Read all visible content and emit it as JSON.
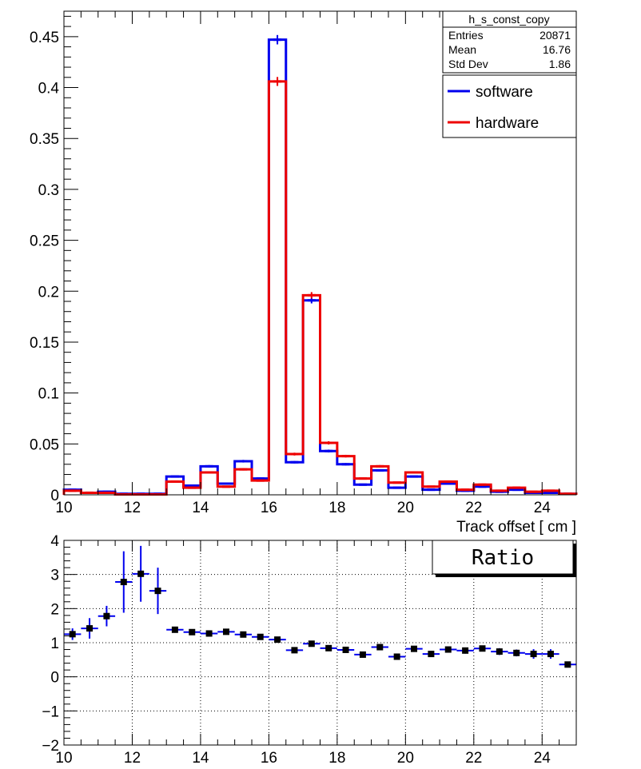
{
  "chart_data": [
    {
      "type": "histogram",
      "xlabel": "Track offset [ cm ]",
      "ylabel": "",
      "xlim": [
        10,
        25
      ],
      "ylim": [
        0,
        0.475
      ],
      "bin_width": 0.5,
      "x_ticks": [
        10,
        12,
        14,
        16,
        18,
        20,
        22,
        24
      ],
      "y_ticks": [
        0,
        0.05,
        0.1,
        0.15,
        0.2,
        0.25,
        0.3,
        0.35,
        0.4,
        0.45
      ],
      "y_tick_labels": [
        "0",
        "0.05",
        "0.1",
        "0.15",
        "0.2",
        "0.25",
        "0.3",
        "0.35",
        "0.4",
        "0.45"
      ],
      "stats_box": {
        "title": "h_s_const_copy",
        "rows": [
          {
            "label": "Entries",
            "value": "20871"
          },
          {
            "label": "Mean",
            "value": "16.76"
          },
          {
            "label": "Std Dev",
            "value": "1.86"
          }
        ]
      },
      "legend_position": "top-right",
      "series": [
        {
          "name": "software",
          "color": "#0000ee",
          "bin_edges_start": 10,
          "values": [
            0.005,
            0.002,
            0.003,
            0.001,
            0.001,
            0.001,
            0.018,
            0.009,
            0.028,
            0.011,
            0.033,
            0.016,
            0.447,
            0.032,
            0.191,
            0.043,
            0.03,
            0.01,
            0.024,
            0.007,
            0.018,
            0.005,
            0.011,
            0.004,
            0.008,
            0.003,
            0.005,
            0.002,
            0.002,
            0.001
          ],
          "errors": [
            0.0006,
            0.0004,
            0.0004,
            0.0003,
            0.0003,
            0.0003,
            0.0009,
            0.0007,
            0.0012,
            0.0007,
            0.0013,
            0.0009,
            0.0046,
            0.0012,
            0.003,
            0.0014,
            0.0012,
            0.0007,
            0.0011,
            0.0006,
            0.0009,
            0.0005,
            0.0007,
            0.0004,
            0.0006,
            0.0004,
            0.0005,
            0.0003,
            0.0003,
            0.0002
          ]
        },
        {
          "name": "hardware",
          "color": "#ee0000",
          "bin_edges_start": 10,
          "values": [
            0.004,
            0.002,
            0.002,
            0.0004,
            0.0004,
            0.0004,
            0.013,
            0.007,
            0.022,
            0.008,
            0.025,
            0.014,
            0.406,
            0.04,
            0.196,
            0.051,
            0.038,
            0.016,
            0.028,
            0.012,
            0.022,
            0.008,
            0.013,
            0.005,
            0.01,
            0.004,
            0.007,
            0.003,
            0.004,
            0.001
          ],
          "errors": [
            0.0005,
            0.0004,
            0.0004,
            0.0002,
            0.0002,
            0.0002,
            0.0008,
            0.0006,
            0.001,
            0.0006,
            0.0011,
            0.0008,
            0.0044,
            0.0014,
            0.0031,
            0.0016,
            0.0013,
            0.0009,
            0.0012,
            0.0008,
            0.001,
            0.0006,
            0.0008,
            0.0005,
            0.0007,
            0.0004,
            0.0006,
            0.0004,
            0.0004,
            0.0002
          ]
        }
      ]
    },
    {
      "type": "scatter",
      "title": "Ratio",
      "xlim": [
        10,
        25
      ],
      "ylim": [
        -2,
        4
      ],
      "x_ticks": [
        10,
        12,
        14,
        16,
        18,
        20,
        22,
        24
      ],
      "y_ticks": [
        -2,
        -1,
        0,
        1,
        2,
        3,
        4
      ],
      "y_tick_labels": [
        "−2",
        "−1",
        "0",
        "1",
        "2",
        "3",
        "4"
      ],
      "grid": true,
      "bin_width": 0.5,
      "series": [
        {
          "name": "",
          "color": "#0000ee",
          "marker_color": "#000000",
          "x": [
            10.25,
            10.75,
            11.25,
            11.75,
            12.25,
            12.75,
            13.25,
            13.75,
            14.25,
            14.75,
            15.25,
            15.75,
            16.25,
            16.75,
            17.25,
            17.75,
            18.25,
            18.75,
            19.25,
            19.75,
            20.25,
            20.75,
            21.25,
            21.75,
            22.25,
            22.75,
            23.25,
            23.75,
            24.25,
            24.75
          ],
          "y": [
            1.25,
            1.42,
            1.78,
            2.78,
            3.02,
            2.52,
            1.38,
            1.31,
            1.27,
            1.32,
            1.24,
            1.17,
            1.09,
            0.78,
            0.97,
            0.84,
            0.79,
            0.65,
            0.87,
            0.59,
            0.82,
            0.67,
            0.8,
            0.77,
            0.83,
            0.74,
            0.7,
            0.67,
            0.67,
            0.36
          ],
          "errors": [
            0.17,
            0.3,
            0.3,
            0.9,
            0.82,
            0.68,
            0.06,
            0.07,
            0.05,
            0.06,
            0.05,
            0.05,
            0.02,
            0.04,
            0.03,
            0.04,
            0.04,
            0.05,
            0.05,
            0.06,
            0.05,
            0.07,
            0.07,
            0.09,
            0.08,
            0.1,
            0.1,
            0.14,
            0.14,
            0.08
          ]
        }
      ]
    }
  ]
}
